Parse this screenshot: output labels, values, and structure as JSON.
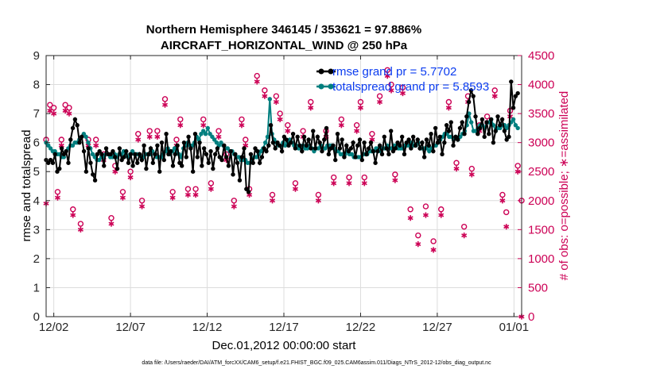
{
  "chart_data": {
    "type": "line",
    "title": [
      "Northern Hemisphere 346145 / 353621 = 97.886%",
      "AIRCRAFT_HORIZONTAL_WIND @ 250 hPa"
    ],
    "xlabel": "Dec.01,2012 00:00:00 start",
    "ylabel_left": "rmse and totalspread",
    "ylabel_right": "# of obs: o=possible; ∗=assimilated",
    "xlim": [
      0,
      31
    ],
    "ylim_left": [
      0,
      9
    ],
    "ylim_right": [
      0,
      4500
    ],
    "x_ticks": [
      {
        "value": 0.5,
        "label": "12/02"
      },
      {
        "value": 5.5,
        "label": "12/07"
      },
      {
        "value": 10.5,
        "label": "12/12"
      },
      {
        "value": 15.5,
        "label": "12/17"
      },
      {
        "value": 20.5,
        "label": "12/22"
      },
      {
        "value": 25.5,
        "label": "12/27"
      },
      {
        "value": 30.5,
        "label": "01/01"
      }
    ],
    "y_ticks_left": [
      "0",
      "1",
      "2",
      "3",
      "4",
      "5",
      "6",
      "7",
      "8",
      "9"
    ],
    "y_ticks_right": [
      "0",
      "500",
      "1000",
      "1500",
      "2000",
      "2500",
      "3000",
      "3500",
      "4000",
      "4500"
    ],
    "footer": "data file: /Users/raeder/DAI/ATM_forcXX/CAM6_setup/f.e21.FHIST_BGC.f09_025.CAM6assim.011/Diags_NTrS_2012-12/obs_diag_output.nc",
    "colors": {
      "rmse": "#000000",
      "spread": "#007f7f",
      "obs": "#cc0055",
      "legend_text": "#0b3cf0"
    },
    "series": [
      {
        "name": "rmse grand pr = 5.7702",
        "key": "rmse",
        "values": [
          5.4,
          5.3,
          5.4,
          5.3,
          5.6,
          5.0,
          5.1,
          5.8,
          5.6,
          5.7,
          5.3,
          6.1,
          6.5,
          6.8,
          6.6,
          6.0,
          6.2,
          5.7,
          5.0,
          5.8,
          5.3,
          4.9,
          4.7,
          5.6,
          5.7,
          5.6,
          5.2,
          5.8,
          5.6,
          5.6,
          5.7,
          5.5,
          5.1,
          5.8,
          5.4,
          5.5,
          5.7,
          5.3,
          5.6,
          5.2,
          5.6,
          5.3,
          5.6,
          5.4,
          5.9,
          5.1,
          5.6,
          5.8,
          5.3,
          5.6,
          5.9,
          5.0,
          6.0,
          5.4,
          6.3,
          5.6,
          5.7,
          5.2,
          5.6,
          5.9,
          5.3,
          5.2,
          6.0,
          5.5,
          6.2,
          5.8,
          5.0,
          6.3,
          5.5,
          6.0,
          5.2,
          5.8,
          5.6,
          5.3,
          5.7,
          5.1,
          5.6,
          5.8,
          5.5,
          5.4,
          5.9,
          5.5,
          5.2,
          5.7,
          4.9,
          5.6,
          5.3,
          4.7,
          5.5,
          5.8,
          4.4,
          4.3,
          5.6,
          5.3,
          5.8,
          5.7,
          5.3,
          5.5,
          5.8,
          5.7,
          5.9,
          6.6,
          6.0,
          5.8,
          6.0,
          5.9,
          5.7,
          6.2,
          6.1,
          5.9,
          6.0,
          6.3,
          5.8,
          6.2,
          5.9,
          5.7,
          6.2,
          5.9,
          6.1,
          5.8,
          6.4,
          5.8,
          6.2,
          6.0,
          5.7,
          6.1,
          6.5,
          5.6,
          5.8,
          5.9,
          5.4,
          6.3,
          5.8,
          6.1,
          5.5,
          5.9,
          5.7,
          5.8,
          6.0,
          5.5,
          5.9,
          6.1,
          5.4,
          6.0,
          5.6,
          5.8,
          6.0,
          5.7,
          5.3,
          5.7,
          5.9,
          5.6,
          6.2,
          5.8,
          5.6,
          6.4,
          5.7,
          5.8,
          6.0,
          5.9,
          6.2,
          5.6,
          6.0,
          6.1,
          5.8,
          6.2,
          5.9,
          6.1,
          5.8,
          6.0,
          5.5,
          6.1,
          5.9,
          6.3,
          5.7,
          6.5,
          6.0,
          6.2,
          5.6,
          6.0,
          6.6,
          6.4,
          6.7,
          5.9,
          6.2,
          6.1,
          6.5,
          6.7,
          6.3,
          6.9,
          7.4,
          7.8,
          7.6,
          6.9,
          6.3,
          6.5,
          6.8,
          6.2,
          6.7,
          6.3,
          6.8,
          6.0,
          6.4,
          6.9,
          6.6,
          6.8,
          6.4,
          6.1,
          6.2,
          8.1,
          7.2,
          7.6,
          7.7
        ]
      },
      {
        "name": "totalspread grand pr = 5.8593",
        "key": "spread",
        "values": [
          6.0,
          5.9,
          5.8,
          5.7,
          5.7,
          5.6,
          5.6,
          5.5,
          5.5,
          5.7,
          5.8,
          5.9,
          5.9,
          6.0,
          6.0,
          6.1,
          6.2,
          6.3,
          6.2,
          6.0,
          5.8,
          5.6,
          5.5,
          5.4,
          5.4,
          5.5,
          5.5,
          5.6,
          5.6,
          5.5,
          5.5,
          5.6,
          5.5,
          5.6,
          5.6,
          5.7,
          5.6,
          5.5,
          5.6,
          5.7,
          5.6,
          5.6,
          5.6,
          5.5,
          5.5,
          5.6,
          5.6,
          5.6,
          5.7,
          5.6,
          5.5,
          5.5,
          5.5,
          5.6,
          5.7,
          5.8,
          5.6,
          5.7,
          5.8,
          5.7,
          5.6,
          5.5,
          5.8,
          5.9,
          6.0,
          5.9,
          5.9,
          6.0,
          6.2,
          6.1,
          6.3,
          6.4,
          6.3,
          6.5,
          6.3,
          6.2,
          6.1,
          6.0,
          5.9,
          6.0,
          5.9,
          5.8,
          5.8,
          5.7,
          5.7,
          5.6,
          5.5,
          5.5,
          5.4,
          5.4,
          5.4,
          5.3,
          5.3,
          5.4,
          5.5,
          5.5,
          5.6,
          5.7,
          5.8,
          6.0,
          6.2,
          7.5,
          6.3,
          6.1,
          6.0,
          5.9,
          5.9,
          6.0,
          5.9,
          6.0,
          6.1,
          6.0,
          5.9,
          5.9,
          5.8,
          5.8,
          5.9,
          5.8,
          5.8,
          5.9,
          5.8,
          5.7,
          5.8,
          5.8,
          5.9,
          5.8,
          5.8,
          5.9,
          5.9,
          5.9,
          5.8,
          5.7,
          5.7,
          5.6,
          5.6,
          5.6,
          5.7,
          5.6,
          5.6,
          5.5,
          5.5,
          5.5,
          5.5,
          5.6,
          5.6,
          5.6,
          5.7,
          5.7,
          5.7,
          5.8,
          5.8,
          5.7,
          5.8,
          5.8,
          5.9,
          5.8,
          5.8,
          5.9,
          5.9,
          5.8,
          5.8,
          5.8,
          5.9,
          5.9,
          5.9,
          6.0,
          5.9,
          5.9,
          6.0,
          5.8,
          5.8,
          5.8,
          5.8,
          5.7,
          5.8,
          5.9,
          5.9,
          6.0,
          6.1,
          6.2,
          6.3,
          6.3,
          6.2,
          6.2,
          6.1,
          6.2,
          6.1,
          6.2,
          6.3,
          6.4,
          6.6,
          7.0,
          6.7,
          6.4,
          6.4,
          6.5,
          6.6,
          6.6,
          6.5,
          6.7,
          6.7,
          6.8,
          6.6,
          6.4,
          6.5,
          6.5,
          6.6,
          6.6,
          6.5,
          6.6,
          6.7,
          6.8,
          6.6,
          6.5
        ]
      },
      {
        "name": "possible",
        "key": "possible",
        "x": [
          0.0,
          0.25,
          0.5,
          0.75,
          1.0,
          1.25,
          1.5,
          1.75,
          2.25,
          2.75,
          3.25,
          3.75,
          4.25,
          4.5,
          5.0,
          5.5,
          6.0,
          6.25,
          6.75,
          7.25,
          7.75,
          8.25,
          8.5,
          8.75,
          9.25,
          9.75,
          10.25,
          10.75,
          11.25,
          11.75,
          12.25,
          12.75,
          13.0,
          13.25,
          13.75,
          14.25,
          14.75,
          15.0,
          15.25,
          15.75,
          16.25,
          16.75,
          17.25,
          17.75,
          18.25,
          18.75,
          19.25,
          19.75,
          20.25,
          20.5,
          20.75,
          21.25,
          21.75,
          22.25,
          22.5,
          22.75,
          23.25,
          23.75,
          24.25,
          24.75,
          25.25,
          25.75,
          26.25,
          26.75,
          27.25,
          27.5,
          27.75,
          28.25,
          28.75,
          29.25,
          29.75,
          30.0,
          30.25,
          30.75,
          31.0
        ],
        "values": [
          3050,
          3650,
          3600,
          2150,
          3050,
          3650,
          3600,
          1850,
          1600,
          3050,
          3050,
          2800,
          1700,
          2600,
          2150,
          2500,
          3150,
          2000,
          3200,
          3200,
          3750,
          2150,
          3050,
          3400,
          2200,
          2200,
          3400,
          2300,
          3200,
          2800,
          2000,
          3400,
          3050,
          2200,
          4150,
          3900,
          2100,
          3800,
          3500,
          3300,
          2300,
          3200,
          3700,
          2100,
          3200,
          2400,
          3400,
          2400,
          3300,
          3700,
          2400,
          3150,
          3800,
          4250,
          4000,
          2450,
          3950,
          1850,
          1400,
          1900,
          1300,
          1850,
          3700,
          2650,
          1550,
          3800,
          2550,
          3300,
          3450,
          3900,
          2100,
          1800,
          3550,
          2600,
          2000
        ]
      },
      {
        "name": "assimilated",
        "key": "assimilated",
        "x": [
          0.0,
          0.25,
          0.5,
          0.75,
          1.0,
          1.25,
          1.5,
          1.75,
          2.25,
          2.75,
          3.25,
          3.75,
          4.25,
          4.5,
          5.0,
          5.5,
          6.0,
          6.25,
          6.75,
          7.25,
          7.75,
          8.25,
          8.5,
          8.75,
          9.25,
          9.75,
          10.25,
          10.75,
          11.25,
          11.75,
          12.25,
          12.75,
          13.0,
          13.25,
          13.75,
          14.25,
          14.75,
          15.0,
          15.25,
          15.75,
          16.25,
          16.75,
          17.25,
          17.75,
          18.25,
          18.75,
          19.25,
          19.75,
          20.25,
          20.5,
          20.75,
          21.25,
          21.75,
          22.25,
          22.5,
          22.75,
          23.25,
          23.75,
          24.25,
          24.75,
          25.25,
          25.75,
          26.25,
          26.75,
          27.25,
          27.5,
          27.75,
          28.25,
          28.75,
          29.25,
          29.75,
          30.0,
          30.25,
          30.75,
          31.0
        ],
        "values": [
          1950,
          3550,
          3500,
          2050,
          2950,
          3550,
          3500,
          1750,
          1500,
          2950,
          2950,
          2700,
          1600,
          2500,
          2050,
          2400,
          3050,
          1900,
          3100,
          3100,
          3650,
          2050,
          2950,
          3300,
          2100,
          2100,
          3300,
          2200,
          3100,
          2700,
          1900,
          3300,
          2950,
          2100,
          4050,
          3800,
          2000,
          3700,
          3400,
          3200,
          2200,
          3100,
          3600,
          2000,
          3100,
          2300,
          3300,
          2300,
          3200,
          3600,
          2300,
          3050,
          3700,
          4150,
          3900,
          2350,
          3850,
          1700,
          1250,
          1750,
          1150,
          1750,
          3600,
          2550,
          1400,
          3700,
          2450,
          3200,
          3350,
          3800,
          2000,
          1550,
          3450,
          2500,
          0
        ]
      }
    ]
  }
}
